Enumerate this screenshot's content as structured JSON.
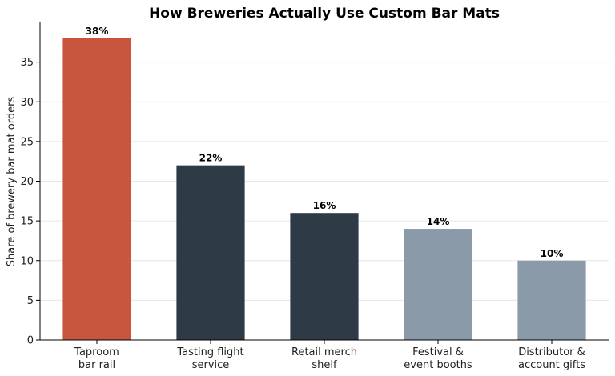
{
  "chart_data": {
    "type": "bar",
    "title": "How Breweries Actually Use Custom Bar Mats",
    "xlabel": "",
    "ylabel": "Share of brewery bar mat orders",
    "ylim": [
      0,
      40
    ],
    "yticks": [
      0,
      5,
      10,
      15,
      20,
      25,
      30,
      35
    ],
    "grid": true,
    "categories": [
      [
        "Taproom",
        "bar rail"
      ],
      [
        "Tasting flight",
        "service"
      ],
      [
        "Retail merch",
        "shelf"
      ],
      [
        "Festival &",
        "event booths"
      ],
      [
        "Distributor &",
        "account gifts"
      ]
    ],
    "values": [
      38,
      22,
      16,
      14,
      10
    ],
    "data_labels": [
      "38%",
      "22%",
      "16%",
      "14%",
      "10%"
    ],
    "colors": [
      "#c8553d",
      "#2e3a46",
      "#2e3a46",
      "#8a9aa9",
      "#8a9aa9"
    ]
  }
}
